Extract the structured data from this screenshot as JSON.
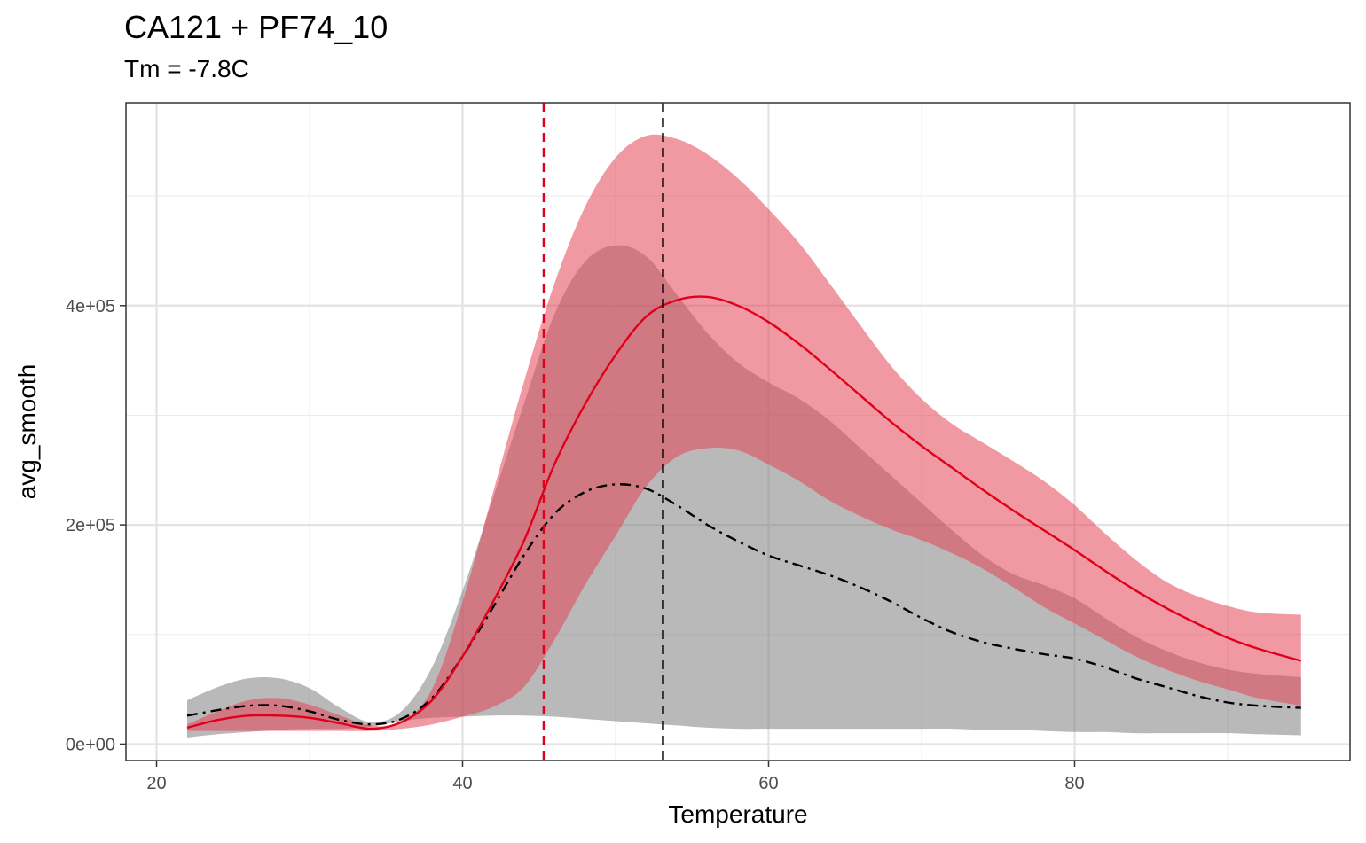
{
  "chart_data": {
    "type": "line",
    "title": "CA121 + PF74_10",
    "subtitle": "Tm = -7.8C",
    "xlabel": "Temperature",
    "ylabel": "avg_smooth",
    "xlim": [
      18,
      98
    ],
    "ylim": [
      -15000,
      585000
    ],
    "x_ticks": [
      20,
      40,
      60,
      80
    ],
    "x_tick_labels": [
      "20",
      "40",
      "60",
      "80"
    ],
    "y_ticks": [
      0,
      200000,
      400000
    ],
    "y_tick_labels": [
      "0e+00",
      "2e+05",
      "4e+05"
    ],
    "grid": true,
    "vlines": [
      {
        "x": 45.3,
        "color": "#e0001b",
        "style": "dashed"
      },
      {
        "x": 53.1,
        "color": "#000000",
        "style": "dashed"
      }
    ],
    "series": [
      {
        "color": "#000000",
        "linestyle": "dashdot",
        "ribbon_color": "#7f7f7f",
        "x": [
          22,
          24,
          26,
          28,
          30,
          32,
          34,
          36,
          38,
          40,
          42,
          44,
          46,
          48,
          50,
          52,
          54,
          56,
          58,
          60,
          62,
          64,
          66,
          68,
          70,
          72,
          74,
          76,
          78,
          80,
          82,
          84,
          86,
          88,
          90,
          92,
          94.8
        ],
        "values": [
          26000,
          31000,
          35000,
          35000,
          30000,
          22000,
          18000,
          23000,
          42000,
          80000,
          125000,
          172000,
          210000,
          230000,
          237000,
          233000,
          218000,
          200000,
          185000,
          172000,
          163000,
          154000,
          143000,
          130000,
          115000,
          102000,
          93000,
          87000,
          82000,
          78000,
          70000,
          60000,
          52000,
          44000,
          38000,
          35000,
          33000
        ],
        "lower": [
          6000,
          9000,
          11000,
          13000,
          14000,
          14000,
          16000,
          21000,
          24000,
          25000,
          26000,
          26000,
          25000,
          23000,
          21000,
          19000,
          17000,
          15000,
          14000,
          14000,
          14000,
          14000,
          14000,
          14000,
          14000,
          14000,
          13000,
          13000,
          12000,
          11000,
          11000,
          10000,
          10000,
          10000,
          10000,
          9000,
          8000
        ],
        "upper": [
          40000,
          52000,
          60000,
          60000,
          51000,
          33000,
          20000,
          30000,
          70000,
          140000,
          225000,
          310000,
          392000,
          440000,
          455000,
          445000,
          410000,
          375000,
          348000,
          330000,
          315000,
          295000,
          270000,
          245000,
          220000,
          195000,
          172000,
          155000,
          145000,
          133000,
          115000,
          98000,
          85000,
          75000,
          68000,
          64000,
          61000
        ]
      },
      {
        "color": "#e0001b",
        "linestyle": "solid",
        "ribbon_color": "#e34656",
        "x": [
          22,
          24,
          26,
          28,
          30,
          32,
          34,
          36,
          38,
          40,
          42,
          44,
          46,
          48,
          50,
          52,
          54,
          56,
          58,
          60,
          62,
          64,
          66,
          68,
          70,
          72,
          74,
          76,
          78,
          80,
          82,
          84,
          86,
          88,
          90,
          92,
          94.8
        ],
        "values": [
          15000,
          22000,
          26000,
          26000,
          24000,
          19000,
          14000,
          20000,
          40000,
          80000,
          130000,
          185000,
          255000,
          310000,
          355000,
          390000,
          405000,
          408000,
          400000,
          385000,
          365000,
          342000,
          318000,
          294000,
          272000,
          252000,
          232000,
          213000,
          195000,
          177000,
          158000,
          140000,
          124000,
          110000,
          97000,
          87000,
          76000
        ],
        "lower": [
          12000,
          12000,
          12000,
          12000,
          12000,
          12000,
          12000,
          14000,
          18000,
          25000,
          34000,
          52000,
          95000,
          145000,
          190000,
          235000,
          262000,
          270000,
          268000,
          255000,
          240000,
          222000,
          208000,
          196000,
          186000,
          174000,
          160000,
          143000,
          125000,
          110000,
          95000,
          80000,
          68000,
          58000,
          50000,
          42000,
          35000
        ],
        "upper": [
          18000,
          30000,
          40000,
          42000,
          36000,
          26000,
          17000,
          20000,
          50000,
          130000,
          230000,
          330000,
          420000,
          490000,
          535000,
          555000,
          552000,
          538000,
          516000,
          488000,
          457000,
          420000,
          382000,
          345000,
          315000,
          292000,
          275000,
          258000,
          240000,
          218000,
          192000,
          168000,
          148000,
          135000,
          126000,
          120000,
          118000
        ]
      }
    ]
  }
}
